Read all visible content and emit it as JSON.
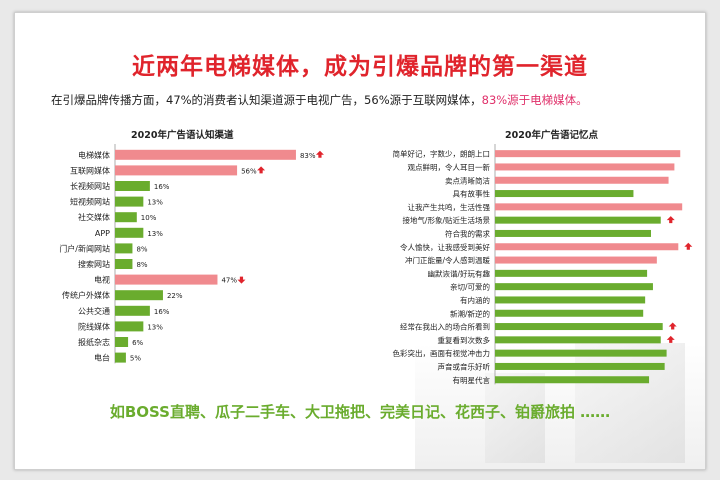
{
  "title": "近两年电梯媒体，成为引爆品牌的第一渠道",
  "subtitle": {
    "text": "在引爆品牌传播方面，47%的消费者认知渠道源于电视广告，56%源于互联网媒体，",
    "highlight": "83%源于电梯媒体。"
  },
  "footer_text": "如BOSS直聘、瓜子二手车、大卫拖把、完美日记、花西子、铂爵旅拍 ……",
  "colors": {
    "red": "#f08a8e",
    "green": "#6aac2e",
    "title_red": "#e0242c",
    "arrow": "#e0242c"
  },
  "chart_data": [
    {
      "type": "bar",
      "orientation": "horizontal",
      "title": "2020年广告语认知渠道",
      "categories": [
        "电梯媒体",
        "互联网媒体",
        "长视频网站",
        "短视频网站",
        "社交媒体",
        "APP",
        "门户/新闻网站",
        "搜索网站",
        "电视",
        "传统户外媒体",
        "公共交通",
        "院线媒体",
        "报纸杂志",
        "电台"
      ],
      "values": [
        83,
        56,
        16,
        13,
        10,
        13,
        8,
        8,
        47,
        22,
        16,
        13,
        6,
        5
      ],
      "value_labels": [
        "83%",
        "56%",
        "16%",
        "13%",
        "10%",
        "13%",
        "8%",
        "8%",
        "47%",
        "22%",
        "16%",
        "13%",
        "6%",
        "5%"
      ],
      "highlight": [
        true,
        true,
        false,
        false,
        false,
        false,
        false,
        false,
        true,
        false,
        false,
        false,
        false,
        false
      ],
      "arrows": [
        "up",
        "up",
        "",
        "",
        "",
        "",
        "",
        "",
        "down",
        "",
        "",
        "",
        "",
        ""
      ],
      "xlim": [
        0,
        100
      ]
    },
    {
      "type": "bar",
      "orientation": "horizontal",
      "title": "2020年广告语记忆点",
      "categories": [
        "简单好记，字数少，朗朗上口",
        "观点鲜明，令人耳目一新",
        "卖点清晰简洁",
        "具有故事性",
        "让我产生共鸣，生活性强",
        "接地气/形象/贴近生活场景",
        "符合我的需求",
        "令人愉快，让我感受到美好",
        "冲门正能量/令人感到温暖",
        "幽默诙谐/好玩有趣",
        "亲切/可爱的",
        "有内涵的",
        "新潮/新逆的",
        "经常在我出入的场合所看到",
        "重复看到次数多",
        "色彩突出，画面有视觉冲击力",
        "声音或音乐好听",
        "有明星代言"
      ],
      "values": [
        95,
        92,
        89,
        71,
        96,
        85,
        80,
        94,
        83,
        78,
        81,
        77,
        76,
        86,
        85,
        88,
        87,
        79
      ],
      "highlight": [
        true,
        true,
        true,
        false,
        true,
        false,
        false,
        true,
        true,
        false,
        false,
        false,
        false,
        false,
        false,
        false,
        false,
        false
      ],
      "arrows": [
        "",
        "",
        "",
        "",
        "",
        "up",
        "",
        "up",
        "",
        "",
        "",
        "",
        "",
        "up",
        "up",
        "",
        "",
        ""
      ],
      "xlim": [
        0,
        100
      ]
    }
  ]
}
